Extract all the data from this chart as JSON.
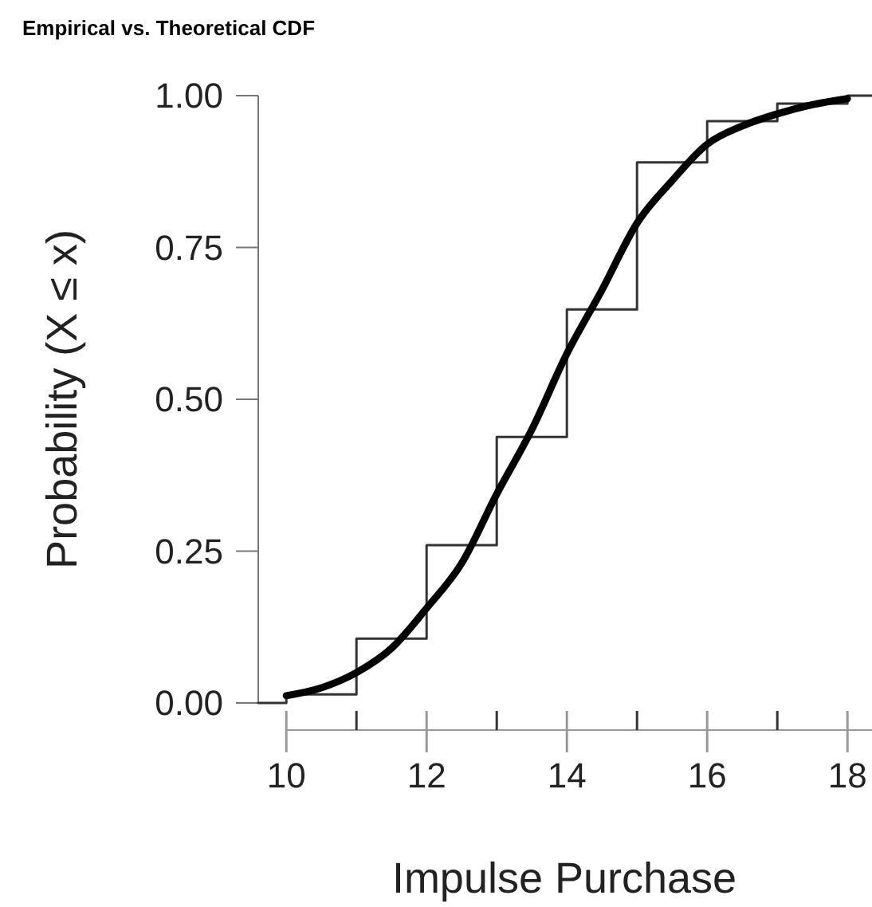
{
  "chart_data": {
    "type": "line",
    "title": "Empirical vs. Theoretical CDF",
    "xlabel": "Impulse Purchase",
    "ylabel": "Probability (X ≤ x)",
    "xlim": [
      9.6,
      18.35
    ],
    "xticks": [
      10,
      {
        "value": 11,
        "label": null
      },
      12,
      {
        "value": 13,
        "label": null
      },
      14,
      {
        "value": 15,
        "label": null
      },
      16,
      {
        "value": 17,
        "label": null
      },
      18
    ],
    "ylim": [
      0,
      1
    ],
    "yticks": [
      {
        "value": 0,
        "label": "0.00"
      },
      {
        "value": 0.25,
        "label": "0.25"
      },
      {
        "value": 0.5,
        "label": "0.50"
      },
      {
        "value": 0.75,
        "label": "0.75"
      },
      {
        "value": 1,
        "label": "1.00"
      }
    ],
    "grid": false,
    "series": [
      {
        "type": "step",
        "color": "#333333",
        "x": [
          9.6,
          10,
          11,
          12,
          13,
          14,
          15,
          16,
          17,
          18,
          18.35
        ],
        "values": [
          0,
          0.014,
          0.106,
          0.26,
          0.438,
          0.648,
          0.89,
          0.958,
          0.987,
          1,
          1
        ]
      },
      {
        "type": "line",
        "color": "#000000",
        "x": [
          10,
          10.5,
          11,
          11.5,
          12,
          12.5,
          13,
          13.5,
          14,
          14.5,
          15,
          15.5,
          16,
          16.5,
          17,
          17.5,
          18
        ],
        "values": [
          0.012,
          0.025,
          0.05,
          0.09,
          0.156,
          0.23,
          0.344,
          0.45,
          0.575,
          0.68,
          0.79,
          0.86,
          0.92,
          0.95,
          0.97,
          0.985,
          0.995
        ]
      }
    ]
  }
}
